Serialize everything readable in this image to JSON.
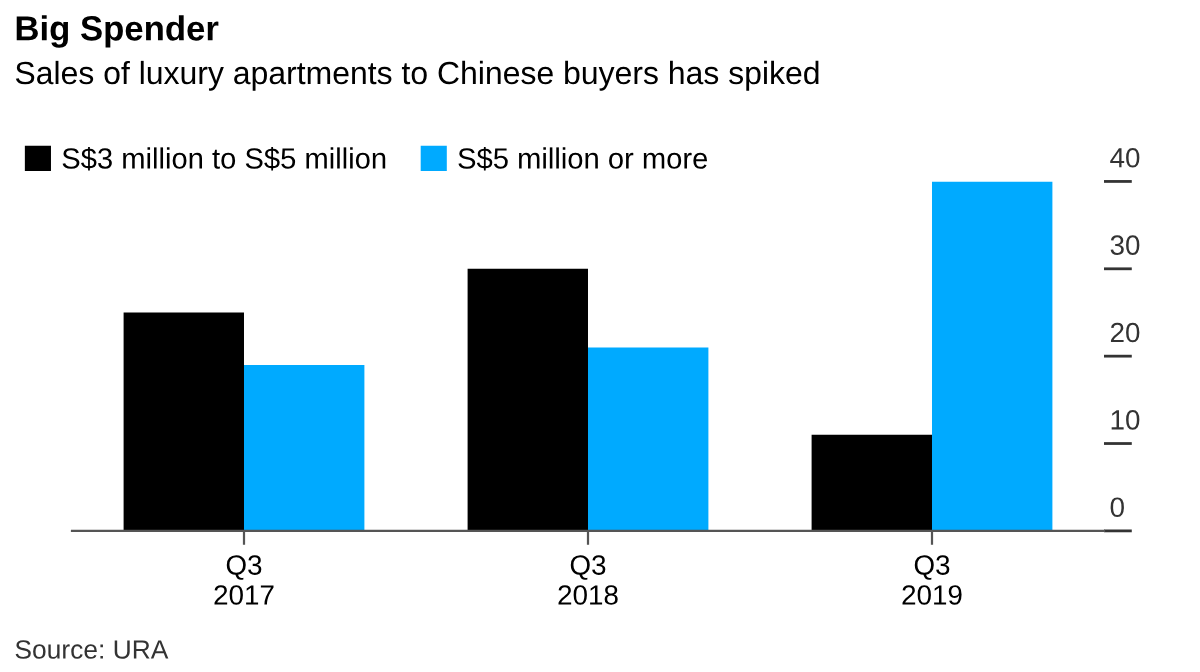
{
  "chart_data": {
    "type": "bar",
    "title": "Big Spender",
    "subtitle": "Sales of luxury apartments to Chinese buyers has spiked",
    "categories": [
      "Q3\n2017",
      "Q3\n2018",
      "Q3\n2019"
    ],
    "series": [
      {
        "name": "S$3 million to S$5 million",
        "color": "#000000",
        "values": [
          25,
          30,
          11
        ]
      },
      {
        "name": "S$5 million or more",
        "color": "#00aaff",
        "values": [
          19,
          21,
          40
        ]
      }
    ],
    "ylim": [
      0,
      40
    ],
    "yticks": [
      0,
      10,
      20,
      30,
      40
    ],
    "grid": false,
    "legend": "top left",
    "annotations": [
      "Source: URA"
    ]
  }
}
